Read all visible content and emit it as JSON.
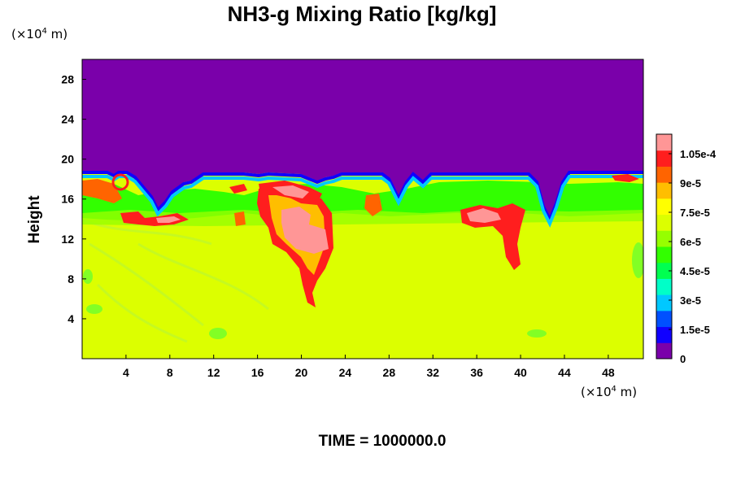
{
  "chart_data": {
    "type": "heatmap",
    "title": "NH3-g Mixing Ratio [kg/kg]",
    "ylabel": "Height",
    "xlabel": "",
    "x_unit": {
      "prefix": "(×10",
      "exp": "4",
      "suffix": " m)"
    },
    "y_unit": {
      "prefix": "(×10",
      "exp": "4",
      "suffix": " m)"
    },
    "xlim": [
      0,
      51.2
    ],
    "ylim": [
      0,
      30
    ],
    "x_ticks": [
      4,
      8,
      12,
      16,
      20,
      24,
      28,
      32,
      36,
      40,
      44,
      48
    ],
    "y_ticks": [
      4,
      8,
      12,
      16,
      20,
      24,
      28
    ],
    "colorbar": {
      "min": 0,
      "max": 0.000115,
      "tick_values": [
        0,
        1.5e-05,
        3e-05,
        4.5e-05,
        6e-05,
        7.5e-05,
        9e-05,
        0.000105
      ],
      "tick_labels": [
        "0",
        "1.5e-5",
        "3e-5",
        "4.5e-5",
        "6e-5",
        "7.5e-5",
        "9e-5",
        "1.05e-4"
      ],
      "colors": [
        "#7a00aa",
        "#1000ff",
        "#0050ff",
        "#00c8ff",
        "#00ffc8",
        "#00ff50",
        "#32ff00",
        "#96ff00",
        "#dcff00",
        "#ffff00",
        "#ffbe00",
        "#ff6400",
        "#ff1e1e",
        "#ff9696"
      ]
    },
    "field_description": {
      "background_value": 7.7e-05,
      "upper_value": 0,
      "interface_height_km_x10e4": 18.5,
      "high_value_cells": [
        {
          "x": 21.0,
          "y": 12.0,
          "value": 0.00011
        },
        {
          "x": 20.5,
          "y": 14.5,
          "value": 0.00011
        },
        {
          "x": 37.5,
          "y": 14.5,
          "value": 0.000108
        },
        {
          "x": 7.0,
          "y": 13.5,
          "value": 0.000108
        },
        {
          "x": 15.0,
          "y": 17.0,
          "value": 0.000105
        },
        {
          "x": 21.0,
          "y": 16.2,
          "value": 0.000105
        }
      ]
    }
  },
  "footer": {
    "time_label": "TIME = 1000000.0"
  }
}
